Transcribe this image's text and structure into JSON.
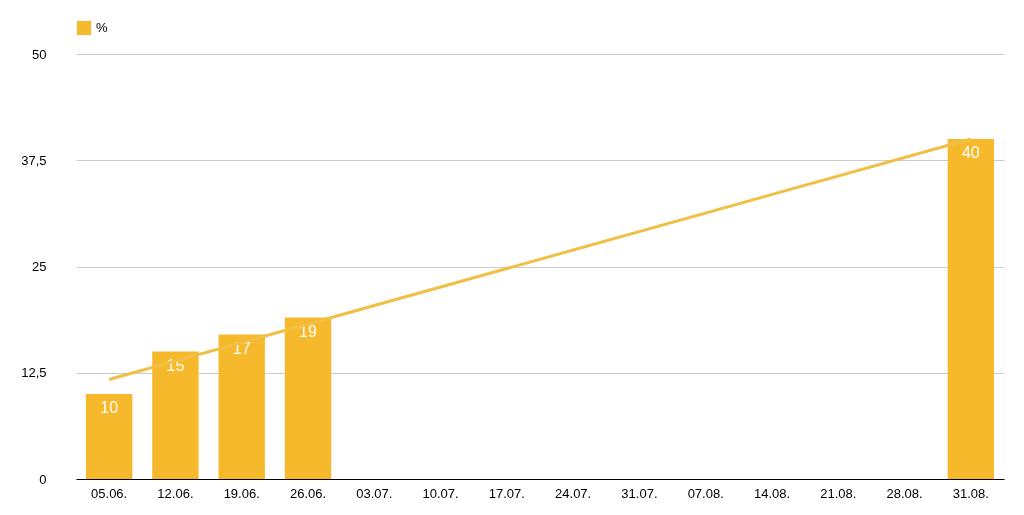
{
  "chart_data": {
    "type": "bar",
    "categories": [
      "05.06.",
      "12.06.",
      "19.06.",
      "26.06.",
      "03.07.",
      "10.07.",
      "17.07.",
      "24.07.",
      "31.07.",
      "07.08.",
      "14.08.",
      "21.08.",
      "28.08.",
      "31.08."
    ],
    "series": [
      {
        "name": "%",
        "color": "#f6b92b",
        "values": [
          10,
          15,
          17,
          19,
          null,
          null,
          null,
          null,
          null,
          null,
          null,
          null,
          null,
          40
        ],
        "value_labels": [
          "10",
          "15",
          "17",
          "19",
          null,
          null,
          null,
          null,
          null,
          null,
          null,
          null,
          null,
          "40"
        ]
      },
      {
        "type": "line",
        "color": "#f0bf45",
        "x": [
          "05.06.",
          "31.08."
        ],
        "values": [
          11.7,
          40
        ]
      }
    ],
    "ylim": [
      0,
      50
    ],
    "yticks": [
      0,
      {
        "value": 12.5,
        "label": "12,5"
      },
      25,
      {
        "value": 37.5,
        "label": "37,5"
      },
      50
    ],
    "grid": "y",
    "legend": "top"
  }
}
